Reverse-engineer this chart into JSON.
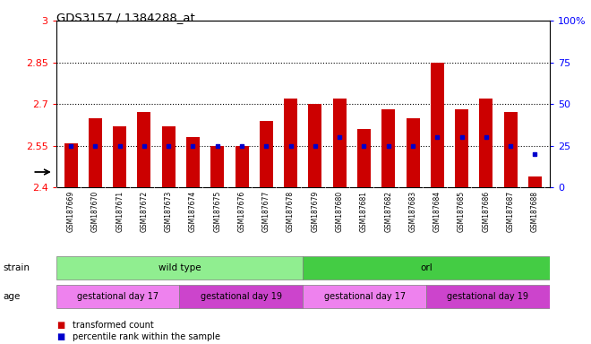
{
  "title": "GDS3157 / 1384288_at",
  "samples": [
    "GSM187669",
    "GSM187670",
    "GSM187671",
    "GSM187672",
    "GSM187673",
    "GSM187674",
    "GSM187675",
    "GSM187676",
    "GSM187677",
    "GSM187678",
    "GSM187679",
    "GSM187680",
    "GSM187681",
    "GSM187682",
    "GSM187683",
    "GSM187684",
    "GSM187685",
    "GSM187686",
    "GSM187687",
    "GSM187688"
  ],
  "transformed_count": [
    2.56,
    2.65,
    2.62,
    2.67,
    2.62,
    2.58,
    2.55,
    2.55,
    2.64,
    2.72,
    2.7,
    2.72,
    2.61,
    2.68,
    2.65,
    2.85,
    2.68,
    2.72,
    2.67,
    2.44
  ],
  "percentile": [
    25,
    25,
    25,
    25,
    25,
    25,
    25,
    25,
    25,
    25,
    25,
    30,
    25,
    25,
    25,
    30,
    30,
    30,
    25,
    20
  ],
  "bar_color": "#cc0000",
  "blue_color": "#0000cc",
  "chart_bg": "#ffffff",
  "xtick_bg": "#d8d8d8",
  "ymin": 2.4,
  "ymax": 3.0,
  "yticks": [
    2.4,
    2.55,
    2.7,
    2.85,
    3.0
  ],
  "ytick_labels": [
    "2.4",
    "2.55",
    "2.7",
    "2.85",
    "3"
  ],
  "right_yticks": [
    0,
    25,
    50,
    75,
    100
  ],
  "right_ytick_labels": [
    "0",
    "25",
    "50",
    "75",
    "100%"
  ],
  "dotted_lines": [
    2.55,
    2.7,
    2.85
  ],
  "strain_labels": [
    {
      "text": "wild type",
      "start": 0,
      "end": 9,
      "color": "#90ee90"
    },
    {
      "text": "orl",
      "start": 10,
      "end": 19,
      "color": "#44cc44"
    }
  ],
  "age_labels": [
    {
      "text": "gestational day 17",
      "start": 0,
      "end": 4,
      "color": "#ee82ee"
    },
    {
      "text": "gestational day 19",
      "start": 5,
      "end": 9,
      "color": "#cc44cc"
    },
    {
      "text": "gestational day 17",
      "start": 10,
      "end": 14,
      "color": "#ee82ee"
    },
    {
      "text": "gestational day 19",
      "start": 15,
      "end": 19,
      "color": "#cc44cc"
    }
  ],
  "legend_items": [
    {
      "color": "#cc0000",
      "label": "transformed count"
    },
    {
      "color": "#0000cc",
      "label": "percentile rank within the sample"
    }
  ]
}
